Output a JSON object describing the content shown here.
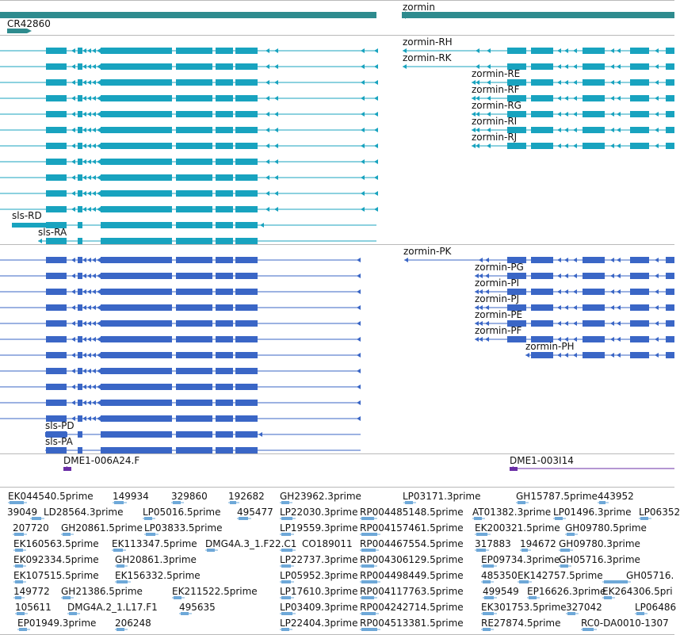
{
  "colors": {
    "gene": "#2e8b8e",
    "ncrna": "#2e8b8e",
    "transcript": "#18a3bf",
    "protein": "#3a66c6",
    "marker": "#6a2ea6",
    "est": "#6ea8d8",
    "separator": "#b9b9b9"
  },
  "gene_track": {
    "genes": [
      "zormin"
    ],
    "ncrna": [
      "CR42860"
    ]
  },
  "transcript_track": {
    "labels": [
      "zormin-RH",
      "zormin-RK",
      "zormin-RE",
      "zormin-RF",
      "zormin-RG",
      "zormin-RI",
      "zormin-RJ",
      "sls-RD",
      "sls-RA"
    ]
  },
  "protein_track": {
    "labels": [
      "zormin-PK",
      "zormin-PG",
      "zormin-PI",
      "zormin-PJ",
      "zormin-PE",
      "zormin-PF",
      "zormin-PH",
      "sls-PD",
      "sls-PA"
    ]
  },
  "marker_track": {
    "labels": [
      "DME1-006A24.F",
      "DME1-003I14"
    ]
  },
  "est_track": {
    "labels": [
      "EK044540.5prime",
      "149934",
      "329860",
      "192682",
      "GH23962.3prime",
      "LP03171.3prime",
      "GH15787.5prime",
      "443952",
      "39049",
      "LD28564.3prime",
      "LP05016.5prime",
      "495477",
      "LP22030.3prime",
      "RP004485148.5prime",
      "AT01382.3prime",
      "LP01496.3prime",
      "LP06352",
      "207720",
      "GH20861.5prime",
      "LP03833.5prime",
      "LP19559.3prime",
      "RP004157461.5prime",
      "EK200321.5prime",
      "GH09780.5prime",
      "EK160563.5prime",
      "EK113347.5prime",
      "DMG4A.3_1.F22.C1",
      "CO189011",
      "RP004467554.5prime",
      "317883",
      "194672",
      "GH09780.3prime",
      "EK092334.5prime",
      "GH20861.3prime",
      "LP22737.3prime",
      "RP004306129.5prime",
      "EP09734.3prime",
      "GH05716.3prime",
      "EK107515.5prime",
      "EK156332.5prime",
      "LP05952.3prime",
      "RP004498449.5prime",
      "485350",
      "EK142757.5prime",
      "GH05716.",
      "149772",
      "GH21386.5prime",
      "EK211522.5prime",
      "LP17610.3prime",
      "RP004117763.5prime",
      "499549",
      "EP16626.3prime",
      "EK264306.5pri",
      "105611",
      "DMG4A.2_1.L17.F1",
      "495635",
      "LP03409.3prime",
      "RP004242714.5prime",
      "EK301753.5prime",
      "327042",
      "LP06486",
      "EP01949.3prime",
      "206248",
      "LP22404.3prime",
      "RP004513381.5prime",
      "RE27874.5prime",
      "RC0-DA0010-1307"
    ]
  }
}
